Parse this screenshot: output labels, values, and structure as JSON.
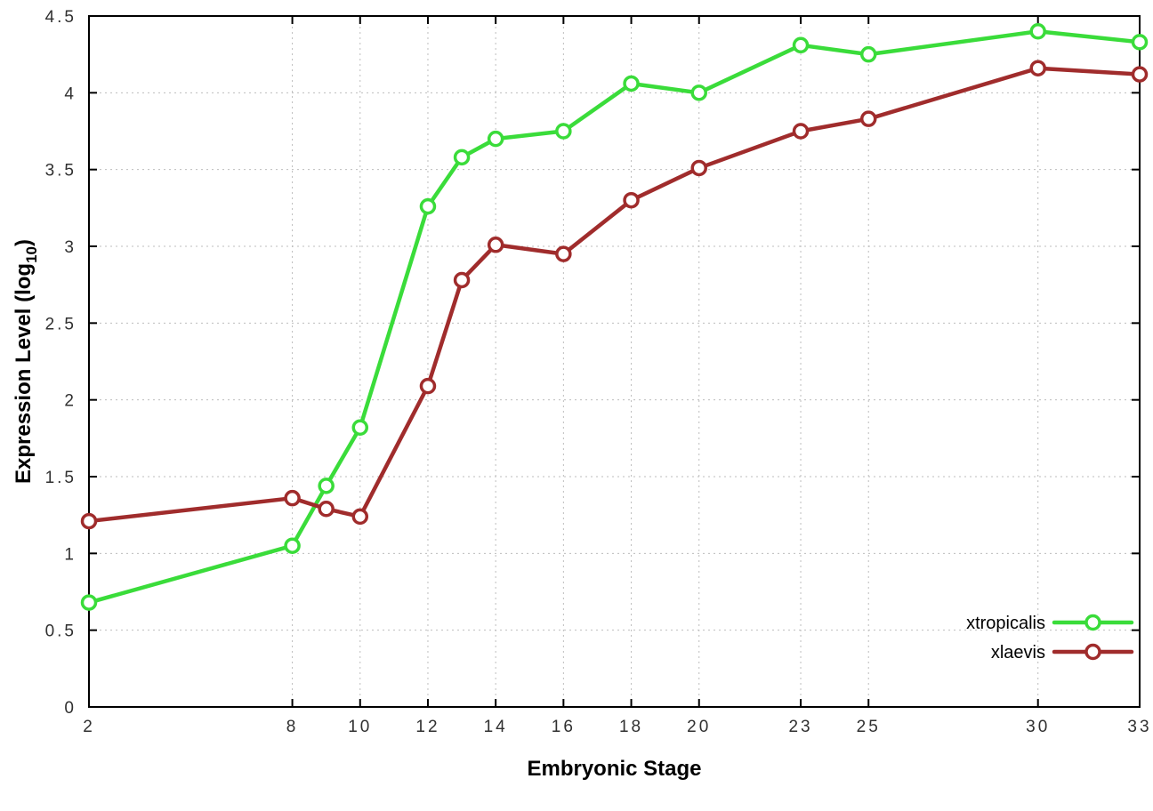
{
  "chart_data": {
    "type": "line",
    "x": [
      2,
      8,
      9,
      10,
      12,
      13,
      14,
      16,
      18,
      20,
      23,
      25,
      30,
      33
    ],
    "series": [
      {
        "name": "xtropicalis",
        "color": "#3adc3a",
        "values": [
          0.68,
          1.05,
          1.44,
          1.82,
          3.26,
          3.58,
          3.7,
          3.75,
          4.06,
          4.0,
          4.31,
          4.25,
          4.4,
          4.33
        ]
      },
      {
        "name": "xlaevis",
        "color": "#a02c2c",
        "values": [
          1.21,
          1.36,
          1.29,
          1.24,
          2.09,
          2.78,
          3.01,
          2.95,
          3.3,
          3.51,
          3.75,
          3.83,
          4.16,
          4.12
        ]
      }
    ],
    "xlabel": "Embryonic Stage",
    "ylabel": {
      "prefix": "Expression Level (log",
      "sub": "10",
      "suffix": ")"
    },
    "xlim": [
      2,
      33
    ],
    "ylim": [
      0,
      4.5
    ],
    "xticks": [
      2,
      8,
      10,
      12,
      14,
      16,
      18,
      20,
      23,
      25,
      30,
      33
    ],
    "xtick_labels": [
      "2",
      "8",
      "10",
      "12",
      "14",
      "16",
      "18",
      "20",
      "23",
      "25",
      "30",
      "33"
    ],
    "yticks": [
      0,
      0.5,
      1,
      1.5,
      2,
      2.5,
      3,
      3.5,
      4,
      4.5
    ],
    "ytick_labels": [
      "0",
      "0.5",
      "1",
      "1.5",
      "2",
      "2.5",
      "3",
      "3.5",
      "4",
      "4.5"
    ],
    "grid": true,
    "legend_position": "bottom-right",
    "background_color": "#ffffff",
    "axis_color": "#000000",
    "grid_color": "#bdbdbd",
    "tick_label_color": "#303030"
  }
}
